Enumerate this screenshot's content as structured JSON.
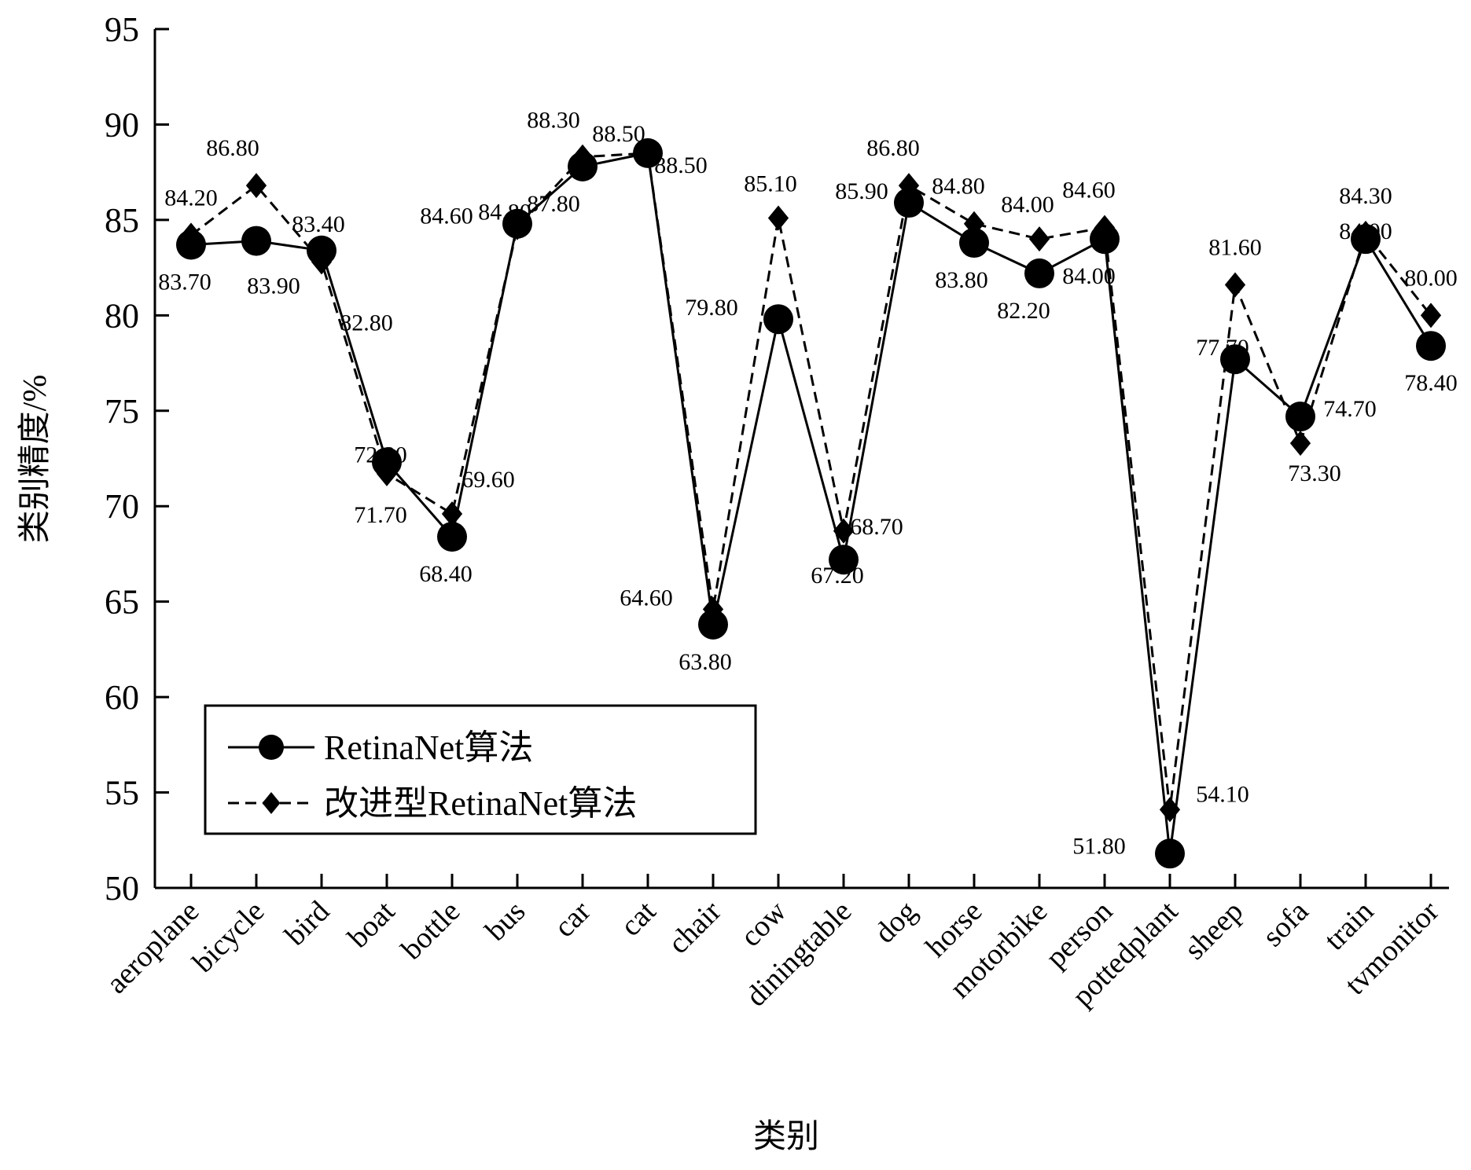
{
  "chart_data": {
    "type": "line",
    "xlabel": "类别",
    "ylabel": "类别精度/%",
    "ylim": [
      50,
      95
    ],
    "yticks": [
      50,
      55,
      60,
      65,
      70,
      75,
      80,
      85,
      90,
      95
    ],
    "grid": false,
    "legend_position": "bottom-left",
    "categories": [
      "aeroplane",
      "bicycle",
      "bird",
      "boat",
      "bottle",
      "bus",
      "car",
      "cat",
      "chair",
      "cow",
      "diningtable",
      "dog",
      "horse",
      "motorbike",
      "person",
      "pottedplant",
      "sheep",
      "sofa",
      "train",
      "tvmonitor"
    ],
    "series": [
      {
        "name": "RetinaNet算法",
        "marker": "circle",
        "line_style": "solid",
        "color": "#000000",
        "values": [
          83.7,
          83.9,
          83.4,
          72.3,
          68.4,
          84.8,
          87.8,
          88.5,
          63.8,
          79.8,
          67.2,
          85.9,
          83.8,
          82.2,
          84.0,
          51.8,
          77.7,
          74.7,
          84.0,
          78.4
        ],
        "labels": [
          "83.70",
          "83.90",
          "83.40",
          "72.30",
          "68.40",
          "84.80",
          "87.80",
          "88.50",
          "63.80",
          "79.80",
          "67.20",
          "85.90",
          "83.80",
          "82.20",
          "84.00",
          "51.80",
          "77.70",
          "74.70",
          "84.00",
          "78.40"
        ]
      },
      {
        "name": "改进型RetinaNet算法",
        "marker": "diamond",
        "line_style": "dashed",
        "color": "#000000",
        "values": [
          84.2,
          86.8,
          82.8,
          71.7,
          69.6,
          84.6,
          88.3,
          88.5,
          64.6,
          85.1,
          68.7,
          86.8,
          84.8,
          84.0,
          84.6,
          54.1,
          81.6,
          73.3,
          84.3,
          80.0
        ],
        "labels": [
          "84.20",
          "86.80",
          "82.80",
          "71.70",
          "69.60",
          "84.60",
          "88.30",
          "88.50",
          "64.60",
          "85.10",
          "68.70",
          "86.80",
          "84.80",
          "84.00",
          "84.60",
          "54.10",
          "81.60",
          "73.30",
          "84.30",
          "80.00"
        ]
      }
    ]
  }
}
